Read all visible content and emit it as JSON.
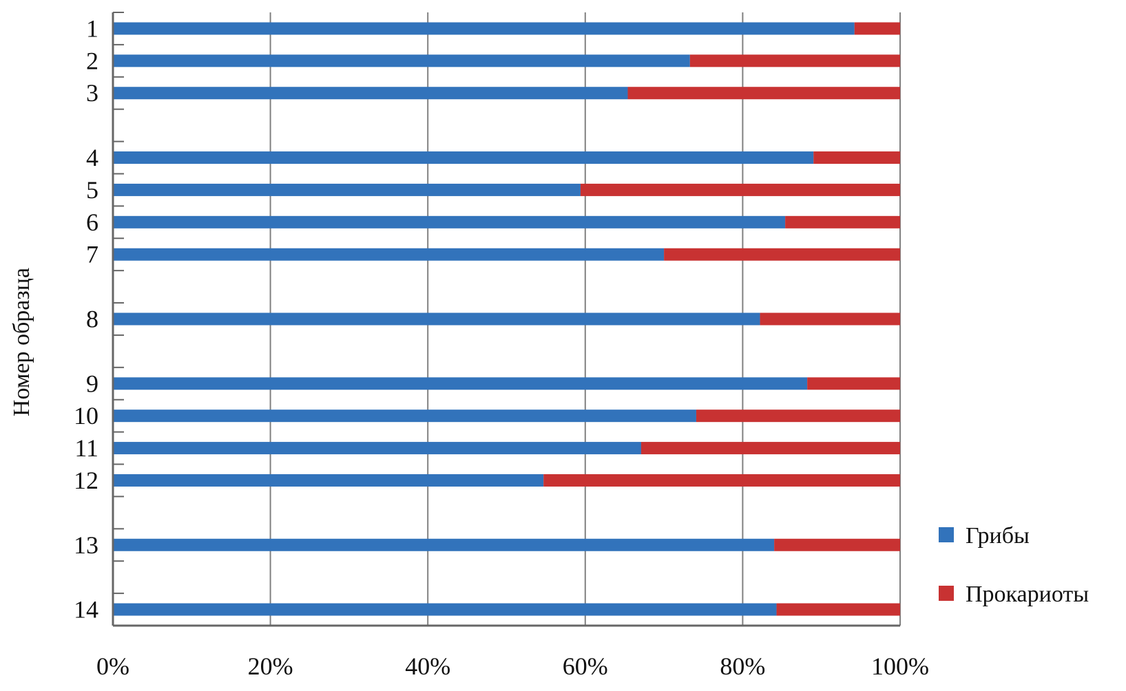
{
  "chart_data": {
    "type": "bar",
    "orientation": "horizontal",
    "stacked": "percent",
    "ylabel": "Номер образца",
    "xlabel": "",
    "xlim": [
      0,
      100
    ],
    "x_ticks": [
      "0%",
      "20%",
      "40%",
      "60%",
      "80%",
      "100%"
    ],
    "grid": "vertical",
    "legend_position": "right-bottom",
    "categories": [
      "1",
      "2",
      "3",
      "",
      "4",
      "5",
      "6",
      "7",
      "",
      "8",
      "",
      "9",
      "10",
      "11",
      "12",
      "",
      "13",
      "",
      "14"
    ],
    "series": [
      {
        "name": "Грибы",
        "color": "#3273bb",
        "values": [
          94.2,
          73.3,
          65.4,
          null,
          89.0,
          59.4,
          85.4,
          70.0,
          null,
          82.2,
          null,
          88.2,
          74.1,
          67.1,
          54.7,
          null,
          84.0,
          null,
          84.3
        ]
      },
      {
        "name": "Прокариоты",
        "color": "#c83232",
        "values": [
          5.8,
          26.7,
          34.6,
          null,
          11.0,
          40.6,
          14.6,
          30.0,
          null,
          17.8,
          null,
          11.8,
          25.9,
          32.9,
          45.3,
          null,
          16.0,
          null,
          15.7
        ]
      }
    ]
  }
}
